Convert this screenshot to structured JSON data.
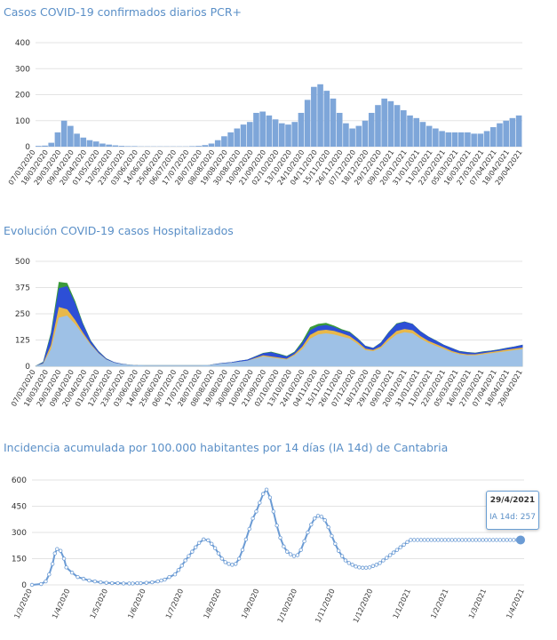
{
  "panels": [
    {
      "title": "Casos COVID-19 confirmados diarios PCR+"
    },
    {
      "title": "Evolución COVID-19 casos  Hospitalizados"
    },
    {
      "title": "Incidencia acumulada por 100.000 habitantes por 14 días (IA 14d) de Cantabria"
    }
  ],
  "tooltip": {
    "date": "29/4/2021",
    "label": "IA 14d: 257"
  },
  "chart_data": [
    {
      "type": "bar",
      "title": "Casos COVID-19 confirmados diarios PCR+",
      "ylim": [
        0,
        400
      ],
      "yticks": [
        "400",
        "300",
        "200",
        "100",
        "0"
      ],
      "xticks": [
        "07/03/2020",
        "18/03/2020",
        "29/03/2020",
        "09/04/2020",
        "20/04/2020",
        "01/05/2020",
        "12/05/2020",
        "23/05/2020",
        "03/06/2020",
        "14/06/2020",
        "25/06/2020",
        "06/07/2020",
        "17/07/2020",
        "28/07/2020",
        "08/08/2020",
        "19/08/2020",
        "30/08/2020",
        "10/09/2020",
        "21/09/2020",
        "02/10/2020",
        "13/10/2020",
        "24/10/2020",
        "04/11/2020",
        "15/11/2020",
        "26/11/2020",
        "07/12/2020",
        "18/12/2020",
        "29/12/2020",
        "09/01/2021",
        "20/01/2021",
        "31/01/2021",
        "11/02/2021",
        "22/02/2021",
        "05/03/2021",
        "16/03/2021",
        "27/03/2021",
        "07/04/2021",
        "18/04/2021",
        "29/04/2021"
      ],
      "bar_color": "#7ea6d9",
      "series": [
        {
          "values": [
            3,
            4,
            15,
            55,
            100,
            80,
            50,
            35,
            25,
            20,
            12,
            8,
            5,
            3,
            2,
            2,
            1,
            1,
            1,
            1,
            1,
            1,
            1,
            1,
            2,
            3,
            6,
            12,
            25,
            40,
            55,
            70,
            85,
            95,
            130,
            135,
            120,
            105,
            90,
            85,
            95,
            130,
            180,
            230,
            240,
            215,
            185,
            130,
            90,
            70,
            80,
            100,
            130,
            160,
            185,
            175,
            160,
            140,
            120,
            110,
            95,
            80,
            70,
            60,
            55,
            55,
            55,
            55,
            50,
            50,
            60,
            75,
            90,
            100,
            110,
            120
          ]
        }
      ]
    },
    {
      "type": "area",
      "title": "Evolución COVID-19 casos  Hospitalizados",
      "ylim": [
        0,
        500
      ],
      "yticks": [
        "500",
        "375",
        "250",
        "125",
        "0"
      ],
      "xticks": [
        "07/03/2020",
        "18/03/2020",
        "29/03/2020",
        "09/04/2020",
        "20/04/2020",
        "01/05/2020",
        "12/05/2020",
        "23/05/2020",
        "03/06/2020",
        "14/06/2020",
        "25/06/2020",
        "06/07/2020",
        "17/07/2020",
        "28/07/2020",
        "08/08/2020",
        "19/08/2020",
        "30/08/2020",
        "10/09/2020",
        "21/09/2020",
        "02/10/2020",
        "13/10/2020",
        "24/10/2020",
        "04/11/2020",
        "15/11/2020",
        "26/11/2020",
        "07/12/2020",
        "18/12/2020",
        "29/12/2020",
        "09/01/2021",
        "20/01/2021",
        "31/01/2021",
        "11/02/2021",
        "22/02/2021",
        "05/03/2021",
        "16/03/2021",
        "27/03/2021",
        "07/04/2021",
        "18/04/2021",
        "29/04/2021"
      ],
      "series": [
        {
          "color": "#9ec1e6",
          "values": [
            0,
            10,
            80,
            230,
            240,
            200,
            150,
            100,
            60,
            30,
            15,
            8,
            5,
            3,
            2,
            2,
            2,
            2,
            2,
            2,
            2,
            2,
            3,
            8,
            12,
            15,
            20,
            25,
            35,
            45,
            40,
            35,
            30,
            50,
            80,
            130,
            150,
            155,
            150,
            140,
            130,
            105,
            75,
            70,
            85,
            120,
            150,
            160,
            155,
            130,
            110,
            95,
            80,
            65,
            55,
            50,
            50,
            55,
            60,
            65,
            70,
            75,
            80
          ]
        },
        {
          "color": "#e8b84a",
          "values": [
            0,
            12,
            100,
            280,
            270,
            220,
            160,
            105,
            62,
            31,
            15,
            8,
            5,
            3,
            2,
            2,
            2,
            2,
            2,
            2,
            2,
            2,
            3,
            8,
            12,
            15,
            20,
            25,
            38,
            50,
            45,
            40,
            34,
            56,
            92,
            148,
            168,
            172,
            167,
            155,
            142,
            115,
            82,
            76,
            93,
            133,
            166,
            176,
            170,
            142,
            120,
            104,
            88,
            71,
            60,
            55,
            55,
            60,
            66,
            71,
            77,
            82,
            87
          ]
        },
        {
          "color": "#2d4fd6",
          "values": [
            0,
            18,
            150,
            370,
            380,
            300,
            200,
            120,
            70,
            35,
            18,
            10,
            6,
            4,
            3,
            3,
            3,
            3,
            3,
            3,
            3,
            3,
            4,
            10,
            15,
            18,
            25,
            30,
            45,
            60,
            65,
            55,
            45,
            65,
            110,
            170,
            190,
            195,
            185,
            170,
            160,
            130,
            95,
            85,
            110,
            160,
            200,
            210,
            200,
            165,
            140,
            120,
            100,
            85,
            70,
            65,
            62,
            68,
            72,
            78,
            85,
            92,
            100
          ]
        },
        {
          "color": "#3a9a3a",
          "values": [
            0,
            20,
            160,
            400,
            395,
            310,
            205,
            122,
            71,
            36,
            18,
            10,
            6,
            4,
            3,
            3,
            3,
            3,
            3,
            3,
            3,
            3,
            4,
            10,
            15,
            18,
            25,
            30,
            46,
            62,
            68,
            58,
            47,
            68,
            118,
            185,
            200,
            205,
            192,
            175,
            163,
            132,
            96,
            86,
            112,
            162,
            203,
            212,
            201,
            166,
            141,
            121,
            101,
            86,
            71,
            66,
            63,
            69,
            73,
            79,
            86,
            93,
            101
          ]
        }
      ]
    },
    {
      "type": "line",
      "title": "Incidencia acumulada por 100.000 habitantes por 14 días (IA 14d) de Cantabria",
      "ylim": [
        0,
        600
      ],
      "yticks": [
        "600",
        "450",
        "300",
        "150",
        "0"
      ],
      "xticks": [
        "1/3/2020",
        "1/4/2020",
        "1/5/2020",
        "1/6/2020",
        "1/7/2020",
        "1/8/2020",
        "1/9/2020",
        "1/10/2020",
        "1/11/2020",
        "1/12/2020",
        "1/1/2021",
        "1/2/2021",
        "1/3/2021",
        "1/4/2021"
      ],
      "series": [
        {
          "color": "#6b9bd4",
          "x": [
            0,
            8,
            12,
            15,
            18,
            20,
            22,
            25,
            28,
            30,
            35,
            40,
            45,
            50,
            55,
            60,
            65,
            70,
            75,
            80,
            85,
            88,
            92,
            95,
            100,
            105,
            110,
            113,
            116,
            120,
            125,
            128,
            131,
            134,
            137,
            140,
            143,
            146,
            150,
            154,
            157,
            160,
            163,
            166,
            169,
            172,
            175,
            178,
            181,
            184,
            187,
            190,
            193,
            196,
            199,
            202,
            205,
            208,
            211,
            214,
            217,
            220,
            223,
            226,
            229,
            232,
            235,
            238,
            241,
            244,
            247,
            250,
            253,
            256,
            259,
            262,
            265,
            268,
            271,
            274,
            277,
            280,
            283,
            286,
            289,
            292,
            295,
            298,
            301,
            304,
            307,
            310,
            313,
            316,
            319,
            322,
            325,
            328,
            331,
            334,
            337,
            340,
            343,
            346,
            349,
            352,
            355,
            358,
            361,
            364,
            367,
            370,
            373,
            376,
            379,
            382,
            385,
            388,
            391,
            394,
            397,
            400,
            403,
            406,
            409,
            412,
            415,
            418,
            421,
            424,
            427
          ],
          "y": [
            0,
            5,
            20,
            60,
            120,
            180,
            205,
            195,
            150,
            100,
            70,
            45,
            35,
            25,
            20,
            15,
            12,
            10,
            10,
            8,
            8,
            8,
            10,
            10,
            12,
            15,
            20,
            25,
            30,
            45,
            60,
            85,
            110,
            140,
            165,
            190,
            215,
            240,
            260,
            255,
            235,
            210,
            180,
            150,
            130,
            120,
            115,
            120,
            150,
            200,
            260,
            320,
            380,
            420,
            470,
            520,
            545,
            500,
            420,
            340,
            270,
            220,
            190,
            175,
            165,
            170,
            200,
            250,
            300,
            345,
            380,
            395,
            390,
            370,
            330,
            280,
            235,
            195,
            165,
            140,
            125,
            115,
            105,
            100,
            98,
            98,
            100,
            108,
            115,
            125,
            140,
            155,
            170,
            185,
            200,
            215,
            230,
            245,
            257,
            257,
            257,
            257,
            257,
            257,
            257,
            257,
            257,
            257,
            257,
            257,
            257,
            257,
            257,
            257,
            257,
            257,
            257,
            257,
            257,
            257,
            257,
            257,
            257,
            257,
            257,
            257,
            257,
            257,
            257,
            257,
            257
          ]
        }
      ]
    }
  ]
}
